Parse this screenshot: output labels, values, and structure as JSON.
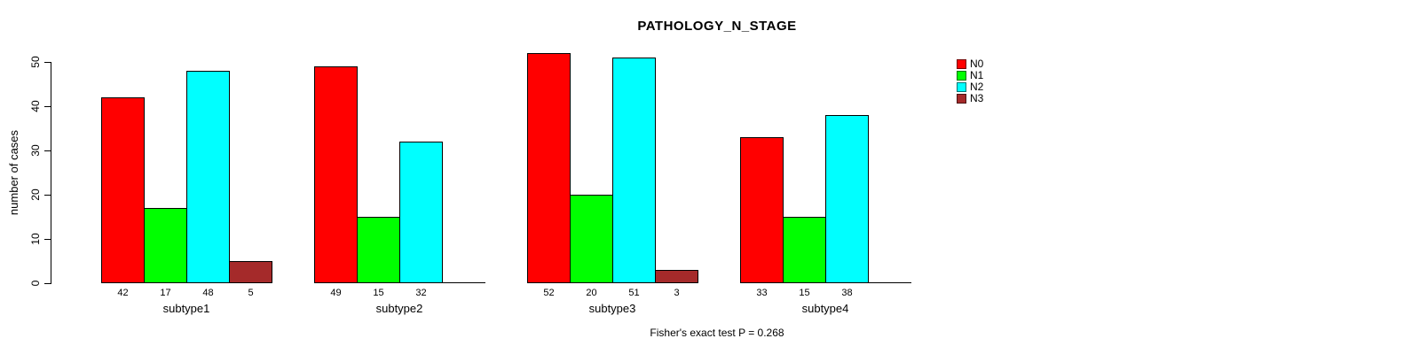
{
  "chart_data": {
    "type": "bar",
    "title": "PATHOLOGY_N_STAGE",
    "xlabel": "",
    "ylabel": "number of cases",
    "categories": [
      "subtype1",
      "subtype2",
      "subtype3",
      "subtype4"
    ],
    "series": [
      {
        "name": "N0",
        "color": "#ff0000",
        "values": [
          42,
          49,
          52,
          33
        ]
      },
      {
        "name": "N1",
        "color": "#00ff00",
        "values": [
          17,
          15,
          20,
          15
        ]
      },
      {
        "name": "N2",
        "color": "#00ffff",
        "values": [
          48,
          32,
          51,
          38
        ]
      },
      {
        "name": "N3",
        "color": "#a52a2a",
        "values": [
          5,
          0,
          3,
          0
        ]
      }
    ],
    "yticks": [
      0,
      10,
      20,
      30,
      40,
      50
    ],
    "ylim": [
      0,
      52
    ],
    "grid": false,
    "legend_position": "top-right",
    "bar_value_labels_shown": true,
    "annotation": "Fisher's exact test P = 0.268"
  }
}
